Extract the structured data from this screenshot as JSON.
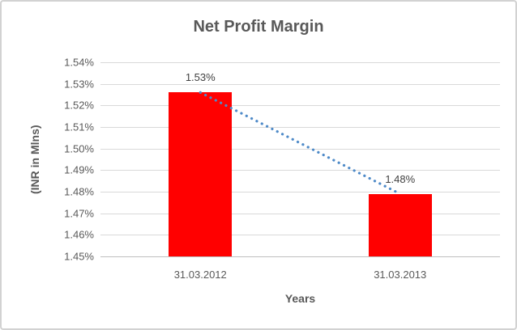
{
  "chart_data": {
    "type": "bar",
    "title": "Net Profit Margin",
    "xlabel": "Years",
    "ylabel": "(INR in Mlns)",
    "categories": [
      "31.03.2012",
      "31.03.2013"
    ],
    "values": [
      1.526,
      1.479
    ],
    "data_labels": [
      "1.53%",
      "1.48%"
    ],
    "ylim": [
      1.45,
      1.54
    ],
    "y_tick_values": [
      1.54,
      1.53,
      1.52,
      1.51,
      1.5,
      1.49,
      1.48,
      1.47,
      1.46,
      1.45
    ],
    "y_tick_labels": [
      "1.54%",
      "1.53%",
      "1.52%",
      "1.51%",
      "1.50%",
      "1.49%",
      "1.48%",
      "1.47%",
      "1.46%",
      "1.45%"
    ],
    "grid": true,
    "legend": false,
    "bar_color": "#ff0000",
    "gridline_color": "#d9d9d9",
    "axis_line_color": "#bfbfbf",
    "text_color": "#595959",
    "trendline": {
      "type": "linear",
      "style": "dotted",
      "color": "#4e8ac8"
    }
  }
}
